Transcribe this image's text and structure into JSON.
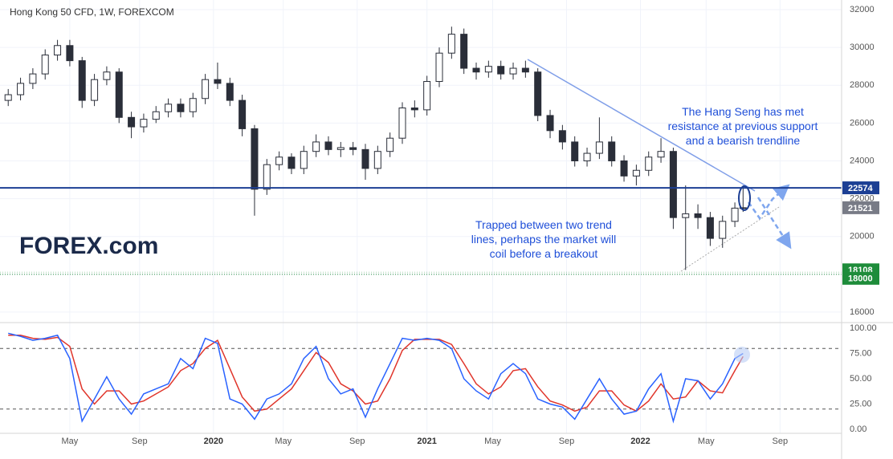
{
  "chart_data": [
    {
      "type": "candlestick",
      "title": "Hong Kong 50 CFD, 1W, FOREXCOM",
      "x": [
        2,
        5,
        8,
        11,
        14,
        17,
        20,
        23,
        26,
        29,
        32,
        35,
        38,
        41,
        44,
        47,
        50,
        53,
        56,
        59,
        62,
        65,
        68,
        71,
        74,
        77,
        80,
        83,
        86,
        89,
        92,
        95,
        98,
        101,
        104,
        107,
        110,
        113,
        116,
        119,
        122,
        125,
        128,
        131,
        134,
        137,
        140,
        143,
        146,
        149,
        152,
        155,
        158,
        161,
        164,
        167,
        170,
        173,
        176,
        179,
        181
      ],
      "open": [
        27200,
        27500,
        28100,
        28600,
        29600,
        30100,
        29300,
        27200,
        28300,
        28700,
        26300,
        25800,
        26200,
        26600,
        27000,
        26600,
        27300,
        28300,
        28100,
        27200,
        25700,
        22500,
        23800,
        24200,
        23600,
        24500,
        25000,
        24600,
        24700,
        24600,
        23600,
        24500,
        25200,
        26800,
        26700,
        28200,
        29700,
        30700,
        28900,
        28700,
        29000,
        28600,
        28900,
        28700,
        26400,
        25600,
        25000,
        24000,
        24400,
        25000,
        24000,
        23200,
        23500,
        24200,
        24500,
        21000,
        21200,
        21000,
        19900,
        20800,
        21500
      ],
      "high": [
        27800,
        28400,
        28900,
        29900,
        30400,
        30400,
        29500,
        28600,
        29000,
        28900,
        26600,
        26500,
        26900,
        27300,
        27300,
        27600,
        28600,
        29200,
        28400,
        27500,
        25900,
        24100,
        24500,
        24400,
        24800,
        25400,
        25300,
        25000,
        25000,
        24900,
        24800,
        25500,
        27100,
        27200,
        28500,
        30000,
        31100,
        31000,
        29200,
        29300,
        29300,
        29200,
        29300,
        28900,
        26700,
        25900,
        25300,
        24700,
        26300,
        25300,
        24300,
        23800,
        24500,
        25200,
        24700,
        22700,
        21700,
        21300,
        21100,
        21800,
        22700
      ],
      "low": [
        26900,
        27200,
        27800,
        28300,
        29300,
        29000,
        26800,
        26900,
        28000,
        26000,
        25200,
        25500,
        26000,
        26300,
        26300,
        26300,
        27000,
        27800,
        26900,
        25300,
        21100,
        22200,
        23500,
        23300,
        23300,
        24200,
        24300,
        24200,
        24300,
        23000,
        23300,
        24200,
        24900,
        26300,
        26400,
        27900,
        29400,
        28600,
        28300,
        28400,
        28300,
        28300,
        28400,
        26100,
        25200,
        24600,
        23700,
        23700,
        24100,
        23700,
        22900,
        22700,
        23200,
        23900,
        20400,
        18230,
        20400,
        19500,
        19400,
        20500,
        21300
      ],
      "close": [
        27500,
        28100,
        28600,
        29600,
        30100,
        29300,
        27200,
        28300,
        28700,
        26300,
        25800,
        26200,
        26600,
        27000,
        26600,
        27300,
        28300,
        28100,
        27200,
        25700,
        22500,
        23800,
        24200,
        23600,
        24500,
        25000,
        24600,
        24700,
        24600,
        23600,
        24500,
        25200,
        26800,
        26700,
        28200,
        29700,
        30700,
        28900,
        28700,
        29000,
        28600,
        28900,
        28700,
        26400,
        25600,
        25000,
        24000,
        24400,
        25000,
        24000,
        23200,
        23500,
        24200,
        24500,
        21000,
        21200,
        21000,
        19900,
        20800,
        21500,
        21521
      ],
      "up_color": "#ffffff",
      "down_color": "#2a2e39",
      "xlim": [
        0,
        205
      ],
      "ylim": [
        15530,
        32510
      ],
      "yticks": [
        16000,
        18000,
        20000,
        22000,
        24000,
        26000,
        28000,
        30000,
        32000
      ],
      "grid": true,
      "markers": [
        {
          "value": 22574,
          "color": "#1c3f94"
        },
        {
          "value": 21521,
          "color": "#787b86"
        },
        {
          "value": 18108,
          "color": "#1e8c3a"
        },
        {
          "value": 18000,
          "color": "#1e8c3a"
        }
      ],
      "annotations": [
        [
          "The Hang Seng has met",
          "resistance at previous support",
          "and a bearish trendline"
        ],
        [
          "Trapped between two trend",
          "lines, perhaps the market will",
          "coil before a breakout"
        ]
      ],
      "logo": "FOREX.com"
    },
    {
      "type": "line",
      "x": [
        2,
        5,
        8,
        11,
        14,
        17,
        20,
        23,
        26,
        29,
        32,
        35,
        38,
        41,
        44,
        47,
        50,
        53,
        56,
        59,
        62,
        65,
        68,
        71,
        74,
        77,
        80,
        83,
        86,
        89,
        92,
        95,
        98,
        101,
        104,
        107,
        110,
        113,
        116,
        119,
        122,
        125,
        128,
        131,
        134,
        137,
        140,
        143,
        146,
        149,
        152,
        155,
        158,
        161,
        164,
        167,
        170,
        173,
        176,
        179,
        181
      ],
      "series": [
        {
          "color": "#2962ff",
          "values": [
            95,
            92,
            88,
            90,
            93,
            70,
            8,
            30,
            52,
            30,
            15,
            35,
            40,
            45,
            70,
            60,
            90,
            85,
            30,
            25,
            10,
            30,
            35,
            45,
            70,
            82,
            50,
            35,
            40,
            12,
            40,
            65,
            90,
            88,
            90,
            88,
            80,
            50,
            38,
            30,
            55,
            65,
            55,
            30,
            25,
            22,
            10,
            30,
            50,
            30,
            15,
            18,
            40,
            55,
            8,
            50,
            48,
            30,
            45,
            70,
            75
          ]
        },
        {
          "color": "#e0352b",
          "values": [
            93,
            93,
            90,
            89,
            91,
            82,
            40,
            25,
            38,
            38,
            25,
            28,
            35,
            42,
            58,
            65,
            80,
            88,
            60,
            32,
            18,
            20,
            30,
            40,
            58,
            76,
            66,
            45,
            38,
            25,
            28,
            50,
            78,
            89,
            89,
            89,
            84,
            65,
            45,
            35,
            42,
            58,
            60,
            42,
            28,
            24,
            18,
            22,
            38,
            38,
            24,
            18,
            28,
            45,
            30,
            32,
            48,
            38,
            36,
            58,
            72
          ]
        }
      ],
      "levels": [
        80,
        20
      ],
      "xlim": [
        0,
        205
      ],
      "ylim": [
        -4,
        103.2
      ],
      "yticks": [
        {
          "value": 0,
          "label": "0.00"
        },
        {
          "value": 25,
          "label": "25.00"
        },
        {
          "value": 50,
          "label": "50.00"
        },
        {
          "value": 75,
          "label": "75.00"
        },
        {
          "value": 100,
          "label": "100.00"
        }
      ],
      "xticks": [
        {
          "value": 17,
          "label": "May"
        },
        {
          "value": 34,
          "label": "Sep"
        },
        {
          "value": 52,
          "label": "2020"
        },
        {
          "value": 69,
          "label": "May"
        },
        {
          "value": 87,
          "label": "Sep"
        },
        {
          "value": 104,
          "label": "2021"
        },
        {
          "value": 120,
          "label": "May"
        },
        {
          "value": 138,
          "label": "Sep"
        },
        {
          "value": 156,
          "label": "2022"
        },
        {
          "value": 172,
          "label": "May"
        },
        {
          "value": 190,
          "label": "Sep"
        }
      ]
    }
  ]
}
